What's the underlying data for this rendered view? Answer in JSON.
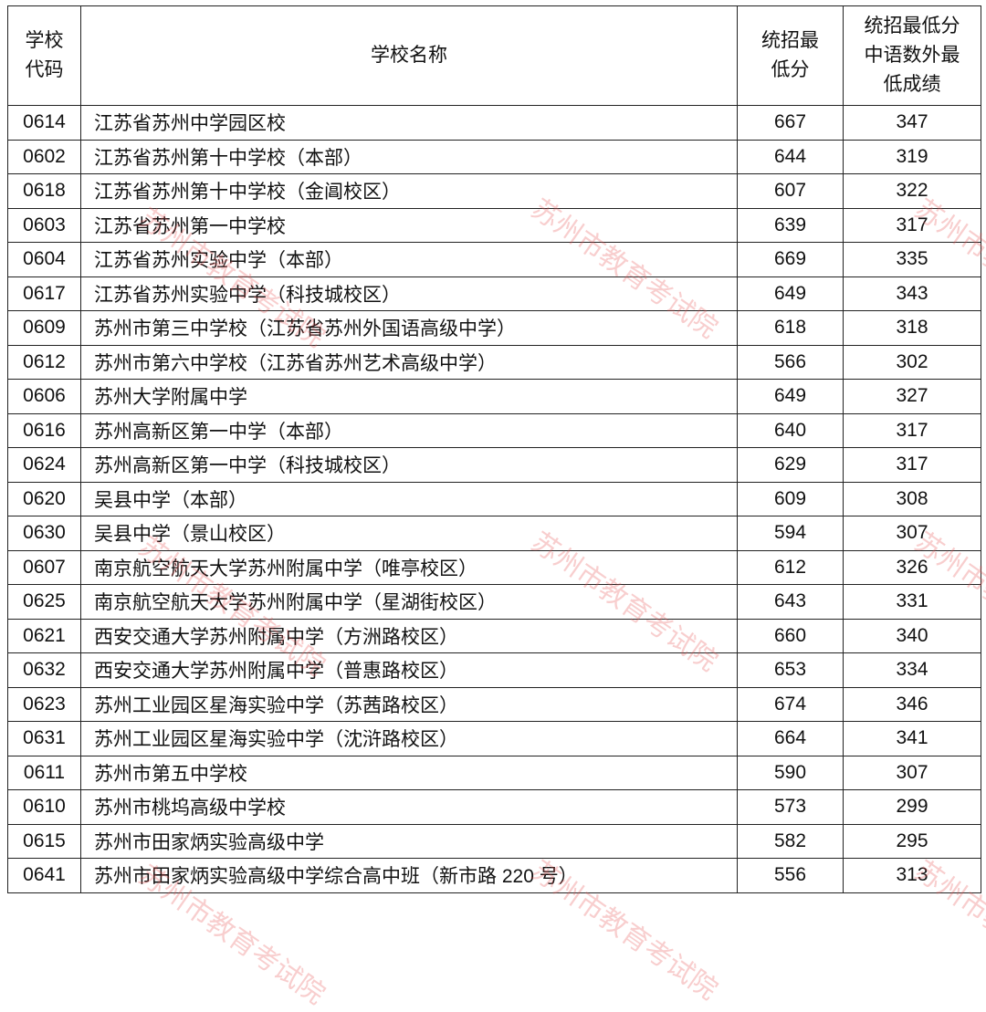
{
  "headers": {
    "code": "学校\n代码",
    "name": "学校名称",
    "min_score": "统招最\n低分",
    "min_subject": "统招最低分\n中语数外最\n低成绩"
  },
  "rows": [
    [
      "0614",
      "江苏省苏州中学园区校",
      "667",
      "347"
    ],
    [
      "0602",
      "江苏省苏州第十中学校（本部）",
      "644",
      "319"
    ],
    [
      "0618",
      "江苏省苏州第十中学校（金阊校区）",
      "607",
      "322"
    ],
    [
      "0603",
      "江苏省苏州第一中学校",
      "639",
      "317"
    ],
    [
      "0604",
      "江苏省苏州实验中学（本部）",
      "669",
      "335"
    ],
    [
      "0617",
      "江苏省苏州实验中学（科技城校区）",
      "649",
      "343"
    ],
    [
      "0609",
      "苏州市第三中学校（江苏省苏州外国语高级中学）",
      "618",
      "318"
    ],
    [
      "0612",
      "苏州市第六中学校（江苏省苏州艺术高级中学）",
      "566",
      "302"
    ],
    [
      "0606",
      "苏州大学附属中学",
      "649",
      "327"
    ],
    [
      "0616",
      "苏州高新区第一中学（本部）",
      "640",
      "317"
    ],
    [
      "0624",
      "苏州高新区第一中学（科技城校区）",
      "629",
      "317"
    ],
    [
      "0620",
      "吴县中学（本部）",
      "609",
      "308"
    ],
    [
      "0630",
      "吴县中学（景山校区）",
      "594",
      "307"
    ],
    [
      "0607",
      "南京航空航天大学苏州附属中学（唯亭校区）",
      "612",
      "326"
    ],
    [
      "0625",
      "南京航空航天大学苏州附属中学（星湖街校区）",
      "643",
      "331"
    ],
    [
      "0621",
      "西安交通大学苏州附属中学（方洲路校区）",
      "660",
      "340"
    ],
    [
      "0632",
      "西安交通大学苏州附属中学（普惠路校区）",
      "653",
      "334"
    ],
    [
      "0623",
      "苏州工业园区星海实验中学（苏茜路校区）",
      "674",
      "346"
    ],
    [
      "0631",
      "苏州工业园区星海实验中学（沈浒路校区）",
      "664",
      "341"
    ],
    [
      "0611",
      "苏州市第五中学校",
      "590",
      "307"
    ],
    [
      "0610",
      "苏州市桃坞高级中学校",
      "573",
      "299"
    ],
    [
      "0615",
      "苏州市田家炳实验高级中学",
      "582",
      "295"
    ],
    [
      "0641",
      "苏州市田家炳实验高级中学综合高中班（新市路 220 号）",
      "556",
      "313"
    ]
  ],
  "watermark": "苏州市教育考试院",
  "watermark_color": "#e65050"
}
